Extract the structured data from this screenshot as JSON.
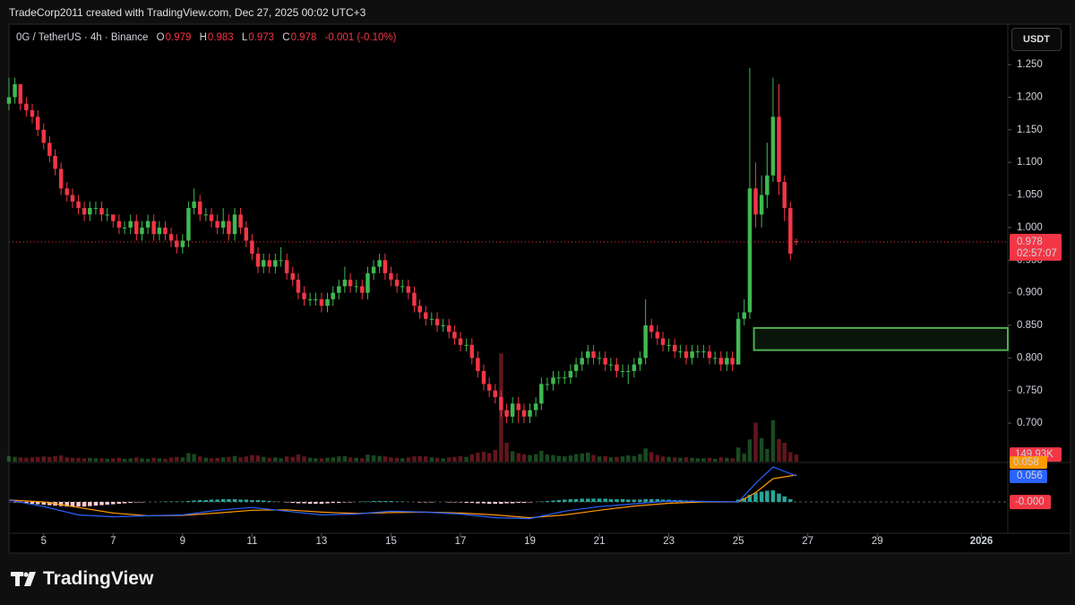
{
  "header": {
    "attribution": "TradeCorp2011 created with TradingView.com, Dec 27, 2025 00:02 UTC+3",
    "currency_button": "USDT",
    "brand": "TradingView"
  },
  "chart_data": {
    "type": "candlestick",
    "symbol": "0G / TetherUS · 4h · Binance",
    "ohlc_letters": [
      "O",
      "H",
      "L",
      "C"
    ],
    "change": "-0.001 (-0.10%)",
    "countdown": "02:57:07",
    "up_color": "#3fb950",
    "down_color": "#f23645",
    "xlim": [
      4,
      32.76
    ],
    "xticks": [
      5,
      7,
      9,
      11,
      13,
      15,
      17,
      19,
      21,
      23,
      25,
      27,
      29,
      {
        "value": 32,
        "label": "2026"
      }
    ],
    "ylim": [
      0.641,
      1.312
    ],
    "yticks": [
      {
        "value": 1.25,
        "label": "1.250"
      },
      {
        "value": 1.2,
        "label": "1.200"
      },
      {
        "value": 1.15,
        "label": "1.150"
      },
      {
        "value": 1.1,
        "label": "1.100"
      },
      {
        "value": 1.05,
        "label": "1.050"
      },
      {
        "value": 1.0,
        "label": "1.000"
      },
      {
        "value": 0.95,
        "label": "0.950"
      },
      {
        "value": 0.9,
        "label": "0.900"
      },
      {
        "value": 0.85,
        "label": "0.850"
      },
      {
        "value": 0.8,
        "label": "0.800"
      },
      {
        "value": 0.75,
        "label": "0.750"
      },
      {
        "value": 0.7,
        "label": "0.700"
      }
    ],
    "grid": false,
    "x": [
      4,
      4.17,
      4.33,
      4.5,
      4.67,
      4.83,
      5,
      5.17,
      5.33,
      5.5,
      5.67,
      5.83,
      6,
      6.17,
      6.33,
      6.5,
      6.67,
      6.83,
      7,
      7.17,
      7.33,
      7.5,
      7.67,
      7.83,
      8,
      8.17,
      8.33,
      8.5,
      8.67,
      8.83,
      9,
      9.17,
      9.33,
      9.5,
      9.67,
      9.83,
      10,
      10.17,
      10.33,
      10.5,
      10.67,
      10.83,
      11,
      11.17,
      11.33,
      11.5,
      11.67,
      11.83,
      12,
      12.17,
      12.33,
      12.5,
      12.67,
      12.83,
      13,
      13.17,
      13.33,
      13.5,
      13.67,
      13.83,
      14,
      14.17,
      14.33,
      14.5,
      14.67,
      14.83,
      15,
      15.17,
      15.33,
      15.5,
      15.67,
      15.83,
      16,
      16.17,
      16.33,
      16.5,
      16.67,
      16.83,
      17,
      17.17,
      17.33,
      17.5,
      17.67,
      17.83,
      18,
      18.17,
      18.33,
      18.5,
      18.67,
      18.83,
      19,
      19.17,
      19.33,
      19.5,
      19.67,
      19.83,
      20,
      20.17,
      20.33,
      20.5,
      20.67,
      20.83,
      21,
      21.17,
      21.33,
      21.5,
      21.67,
      21.83,
      22,
      22.17,
      22.33,
      22.5,
      22.67,
      22.83,
      23,
      23.17,
      23.33,
      23.5,
      23.67,
      23.83,
      24,
      24.17,
      24.33,
      24.5,
      24.67,
      24.83,
      25,
      25.17,
      25.33,
      25.5,
      25.67,
      25.83,
      26,
      26.17,
      26.33,
      26.5,
      26.67
    ],
    "ohlc": [
      [
        1.19,
        1.23,
        1.18,
        1.2
      ],
      [
        1.2,
        1.23,
        1.19,
        1.22
      ],
      [
        1.22,
        1.22,
        1.18,
        1.19
      ],
      [
        1.19,
        1.2,
        1.17,
        1.18
      ],
      [
        1.18,
        1.19,
        1.16,
        1.17
      ],
      [
        1.17,
        1.18,
        1.14,
        1.15
      ],
      [
        1.15,
        1.16,
        1.12,
        1.13
      ],
      [
        1.13,
        1.14,
        1.1,
        1.11
      ],
      [
        1.11,
        1.12,
        1.08,
        1.09
      ],
      [
        1.09,
        1.1,
        1.05,
        1.06
      ],
      [
        1.06,
        1.07,
        1.04,
        1.05
      ],
      [
        1.05,
        1.06,
        1.03,
        1.04
      ],
      [
        1.04,
        1.05,
        1.02,
        1.03
      ],
      [
        1.03,
        1.04,
        1.01,
        1.02
      ],
      [
        1.02,
        1.04,
        1.01,
        1.03
      ],
      [
        1.03,
        1.04,
        1.02,
        1.03
      ],
      [
        1.03,
        1.04,
        1.01,
        1.02
      ],
      [
        1.02,
        1.03,
        1.01,
        1.02
      ],
      [
        1.02,
        1.02,
        1.0,
        1.01
      ],
      [
        1.01,
        1.02,
        0.99,
        1.0
      ],
      [
        1.0,
        1.01,
        0.99,
        1.0
      ],
      [
        1.0,
        1.02,
        0.99,
        1.01
      ],
      [
        1.01,
        1.02,
        0.98,
        0.99
      ],
      [
        0.99,
        1.01,
        0.98,
        1.0
      ],
      [
        1.0,
        1.02,
        0.99,
        1.01
      ],
      [
        1.01,
        1.02,
        0.98,
        0.99
      ],
      [
        0.99,
        1.01,
        0.98,
        1.0
      ],
      [
        1.0,
        1.01,
        0.98,
        0.99
      ],
      [
        0.99,
        1.0,
        0.97,
        0.98
      ],
      [
        0.98,
        0.99,
        0.96,
        0.97
      ],
      [
        0.97,
        0.99,
        0.96,
        0.98
      ],
      [
        0.98,
        1.04,
        0.97,
        1.03
      ],
      [
        1.03,
        1.06,
        1.02,
        1.04
      ],
      [
        1.04,
        1.05,
        1.01,
        1.02
      ],
      [
        1.02,
        1.03,
        1.01,
        1.02
      ],
      [
        1.02,
        1.03,
        1.0,
        1.01
      ],
      [
        1.01,
        1.02,
        0.99,
        1.0
      ],
      [
        1.0,
        1.03,
        0.99,
        1.01
      ],
      [
        1.01,
        1.02,
        0.98,
        0.99
      ],
      [
        0.99,
        1.03,
        0.98,
        1.02
      ],
      [
        1.02,
        1.03,
        0.99,
        1.0
      ],
      [
        1.0,
        1.01,
        0.97,
        0.98
      ],
      [
        0.98,
        0.99,
        0.95,
        0.96
      ],
      [
        0.96,
        0.97,
        0.93,
        0.94
      ],
      [
        0.94,
        0.96,
        0.93,
        0.95
      ],
      [
        0.95,
        0.96,
        0.93,
        0.94
      ],
      [
        0.94,
        0.96,
        0.93,
        0.95
      ],
      [
        0.95,
        0.97,
        0.94,
        0.95
      ],
      [
        0.95,
        0.96,
        0.92,
        0.93
      ],
      [
        0.93,
        0.94,
        0.91,
        0.92
      ],
      [
        0.92,
        0.93,
        0.89,
        0.9
      ],
      [
        0.9,
        0.91,
        0.88,
        0.89
      ],
      [
        0.89,
        0.9,
        0.88,
        0.89
      ],
      [
        0.89,
        0.9,
        0.88,
        0.89
      ],
      [
        0.89,
        0.9,
        0.87,
        0.88
      ],
      [
        0.88,
        0.9,
        0.87,
        0.89
      ],
      [
        0.89,
        0.91,
        0.88,
        0.9
      ],
      [
        0.9,
        0.92,
        0.89,
        0.91
      ],
      [
        0.91,
        0.94,
        0.9,
        0.92
      ],
      [
        0.92,
        0.93,
        0.9,
        0.91
      ],
      [
        0.91,
        0.92,
        0.9,
        0.91
      ],
      [
        0.91,
        0.92,
        0.89,
        0.9
      ],
      [
        0.9,
        0.94,
        0.89,
        0.93
      ],
      [
        0.93,
        0.95,
        0.92,
        0.94
      ],
      [
        0.94,
        0.96,
        0.93,
        0.95
      ],
      [
        0.95,
        0.96,
        0.92,
        0.93
      ],
      [
        0.93,
        0.94,
        0.91,
        0.92
      ],
      [
        0.92,
        0.93,
        0.9,
        0.91
      ],
      [
        0.91,
        0.92,
        0.9,
        0.91
      ],
      [
        0.91,
        0.92,
        0.89,
        0.9
      ],
      [
        0.9,
        0.91,
        0.87,
        0.88
      ],
      [
        0.88,
        0.89,
        0.86,
        0.87
      ],
      [
        0.87,
        0.88,
        0.85,
        0.86
      ],
      [
        0.86,
        0.87,
        0.85,
        0.86
      ],
      [
        0.86,
        0.87,
        0.84,
        0.85
      ],
      [
        0.85,
        0.86,
        0.84,
        0.85
      ],
      [
        0.85,
        0.86,
        0.83,
        0.84
      ],
      [
        0.84,
        0.85,
        0.82,
        0.83
      ],
      [
        0.83,
        0.84,
        0.81,
        0.82
      ],
      [
        0.82,
        0.83,
        0.81,
        0.82
      ],
      [
        0.82,
        0.83,
        0.79,
        0.8
      ],
      [
        0.8,
        0.81,
        0.77,
        0.78
      ],
      [
        0.78,
        0.79,
        0.75,
        0.76
      ],
      [
        0.76,
        0.77,
        0.74,
        0.75
      ],
      [
        0.75,
        0.76,
        0.73,
        0.74
      ],
      [
        0.74,
        0.75,
        0.71,
        0.72
      ],
      [
        0.72,
        0.73,
        0.7,
        0.71
      ],
      [
        0.71,
        0.74,
        0.7,
        0.73
      ],
      [
        0.73,
        0.74,
        0.7,
        0.72
      ],
      [
        0.72,
        0.73,
        0.7,
        0.71
      ],
      [
        0.71,
        0.73,
        0.7,
        0.72
      ],
      [
        0.72,
        0.74,
        0.71,
        0.73
      ],
      [
        0.73,
        0.77,
        0.72,
        0.76
      ],
      [
        0.76,
        0.77,
        0.75,
        0.76
      ],
      [
        0.76,
        0.78,
        0.75,
        0.77
      ],
      [
        0.77,
        0.78,
        0.76,
        0.77
      ],
      [
        0.77,
        0.78,
        0.76,
        0.77
      ],
      [
        0.77,
        0.79,
        0.76,
        0.78
      ],
      [
        0.78,
        0.8,
        0.77,
        0.79
      ],
      [
        0.79,
        0.81,
        0.78,
        0.8
      ],
      [
        0.8,
        0.82,
        0.79,
        0.81
      ],
      [
        0.81,
        0.82,
        0.79,
        0.8
      ],
      [
        0.8,
        0.81,
        0.79,
        0.8
      ],
      [
        0.8,
        0.81,
        0.78,
        0.79
      ],
      [
        0.79,
        0.8,
        0.78,
        0.79
      ],
      [
        0.79,
        0.8,
        0.77,
        0.78
      ],
      [
        0.78,
        0.79,
        0.77,
        0.78
      ],
      [
        0.78,
        0.79,
        0.76,
        0.78
      ],
      [
        0.78,
        0.8,
        0.77,
        0.79
      ],
      [
        0.79,
        0.81,
        0.78,
        0.8
      ],
      [
        0.8,
        0.89,
        0.79,
        0.85
      ],
      [
        0.85,
        0.86,
        0.83,
        0.84
      ],
      [
        0.84,
        0.85,
        0.82,
        0.83
      ],
      [
        0.83,
        0.84,
        0.81,
        0.82
      ],
      [
        0.82,
        0.83,
        0.81,
        0.82
      ],
      [
        0.82,
        0.83,
        0.8,
        0.81
      ],
      [
        0.81,
        0.82,
        0.8,
        0.81
      ],
      [
        0.81,
        0.82,
        0.79,
        0.8
      ],
      [
        0.8,
        0.82,
        0.79,
        0.81
      ],
      [
        0.81,
        0.82,
        0.8,
        0.81
      ],
      [
        0.81,
        0.82,
        0.8,
        0.81
      ],
      [
        0.81,
        0.82,
        0.79,
        0.8
      ],
      [
        0.8,
        0.81,
        0.79,
        0.8
      ],
      [
        0.8,
        0.81,
        0.78,
        0.79
      ],
      [
        0.79,
        0.81,
        0.78,
        0.8
      ],
      [
        0.8,
        0.81,
        0.78,
        0.79
      ],
      [
        0.79,
        0.87,
        0.79,
        0.86
      ],
      [
        0.86,
        0.89,
        0.85,
        0.87
      ],
      [
        0.87,
        1.245,
        0.86,
        1.06
      ],
      [
        1.06,
        1.1,
        1.0,
        1.02
      ],
      [
        1.02,
        1.08,
        1.0,
        1.05
      ],
      [
        1.05,
        1.13,
        1.03,
        1.08
      ],
      [
        1.08,
        1.23,
        1.07,
        1.17
      ],
      [
        1.17,
        1.22,
        1.05,
        1.07
      ],
      [
        1.07,
        1.08,
        1.01,
        1.03
      ],
      [
        1.03,
        1.04,
        0.95,
        0.96
      ],
      [
        0.979,
        0.983,
        0.973,
        0.978
      ]
    ],
    "zone": {
      "x": 25.45,
      "low": 0.812,
      "high": 0.846,
      "color": "#4caf50"
    },
    "volume_ylim": [
      0,
      9300000
    ],
    "volume_label": "149.93K",
    "volume": [
      120000,
      100000,
      90000,
      80000,
      90000,
      100000,
      110000,
      100000,
      120000,
      130000,
      90000,
      80000,
      80000,
      70000,
      80000,
      70000,
      70000,
      60000,
      70000,
      80000,
      60000,
      70000,
      90000,
      70000,
      60000,
      80000,
      70000,
      60000,
      90000,
      100000,
      90000,
      180000,
      160000,
      110000,
      80000,
      70000,
      80000,
      90000,
      100000,
      120000,
      90000,
      110000,
      140000,
      130000,
      100000,
      80000,
      90000,
      70000,
      110000,
      100000,
      150000,
      110000,
      80000,
      70000,
      70000,
      80000,
      90000,
      110000,
      120000,
      90000,
      80000,
      70000,
      150000,
      130000,
      120000,
      110000,
      90000,
      80000,
      70000,
      90000,
      110000,
      120000,
      110000,
      90000,
      80000,
      70000,
      90000,
      100000,
      120000,
      100000,
      150000,
      190000,
      210000,
      180000,
      250000,
      2300000,
      400000,
      220000,
      180000,
      150000,
      140000,
      160000,
      230000,
      150000,
      140000,
      120000,
      110000,
      130000,
      160000,
      170000,
      190000,
      140000,
      110000,
      120000,
      90000,
      100000,
      110000,
      130000,
      120000,
      160000,
      280000,
      200000,
      140000,
      110000,
      100000,
      90000,
      80000,
      90000,
      80000,
      70000,
      70000,
      80000,
      60000,
      90000,
      80000,
      70000,
      300000,
      170000,
      470000,
      830000,
      500000,
      270000,
      880000,
      480000,
      400000,
      200000,
      149930
    ],
    "macd_ylim": [
      -0.0676,
      0.083
    ],
    "macd_x": [
      4,
      5,
      6,
      7,
      8,
      9,
      10,
      11,
      12,
      13,
      14,
      15,
      16,
      17,
      18,
      19,
      20,
      21,
      22,
      23,
      24,
      25,
      25.5,
      26,
      26.67
    ],
    "macd": {
      "color": "#2962ff",
      "values": [
        0.004,
        -0.01,
        -0.028,
        -0.032,
        -0.03,
        -0.028,
        -0.018,
        -0.012,
        -0.02,
        -0.028,
        -0.026,
        -0.02,
        -0.022,
        -0.026,
        -0.034,
        -0.036,
        -0.02,
        -0.01,
        -0.004,
        0.002,
        0.001,
        0.0,
        0.04,
        0.075,
        0.056
      ]
    },
    "signal": {
      "color": "#ff9800",
      "values": [
        0.004,
        0.0,
        -0.012,
        -0.024,
        -0.03,
        -0.029,
        -0.024,
        -0.018,
        -0.017,
        -0.022,
        -0.025,
        -0.023,
        -0.022,
        -0.024,
        -0.028,
        -0.034,
        -0.028,
        -0.018,
        -0.009,
        -0.003,
        0.0,
        0.0,
        0.02,
        0.05,
        0.058
      ]
    },
    "histogram_colors": {
      "positive": "#26a69a",
      "negative": "#ffcdd2"
    },
    "histogram_last_label": "-0.000",
    "histogram": [
      0,
      -0.001,
      -0.002,
      -0.003,
      -0.004,
      -0.005,
      -0.006,
      -0.007,
      -0.008,
      -0.009,
      -0.01,
      -0.01,
      -0.01,
      -0.01,
      -0.009,
      -0.008,
      -0.007,
      -0.006,
      -0.005,
      -0.004,
      -0.003,
      -0.002,
      -0.001,
      -0.001,
      0,
      0,
      0,
      0.001,
      0.001,
      0.001,
      0.001,
      0.002,
      0.003,
      0.004,
      0.004,
      0.005,
      0.005,
      0.006,
      0.006,
      0.006,
      0.005,
      0.005,
      0.004,
      0.004,
      0.003,
      0.002,
      0.001,
      0,
      -0.001,
      -0.002,
      -0.003,
      -0.003,
      -0.004,
      -0.004,
      -0.004,
      -0.003,
      -0.002,
      -0.002,
      -0.001,
      -0.001,
      0,
      0.001,
      0.001,
      0.002,
      0.002,
      0.002,
      0.002,
      0.001,
      0.001,
      0,
      0,
      -0.001,
      -0.001,
      -0.001,
      0,
      0,
      -0.001,
      -0.001,
      -0.001,
      -0.002,
      -0.002,
      -0.003,
      -0.003,
      -0.004,
      -0.004,
      -0.004,
      -0.003,
      -0.003,
      -0.002,
      -0.002,
      -0.001,
      0,
      0.001,
      0.002,
      0.003,
      0.004,
      0.005,
      0.006,
      0.006,
      0.007,
      0.007,
      0.007,
      0.007,
      0.007,
      0.006,
      0.006,
      0.006,
      0.005,
      0.005,
      0.005,
      0.006,
      0.006,
      0.006,
      0.005,
      0.005,
      0.004,
      0.004,
      0.003,
      0.003,
      0.002,
      0.002,
      0.001,
      0.001,
      0,
      0,
      0,
      0.005,
      0.008,
      0.015,
      0.02,
      0.022,
      0.024,
      0.025,
      0.018,
      0.012,
      0.006,
      -0.0002
    ]
  }
}
